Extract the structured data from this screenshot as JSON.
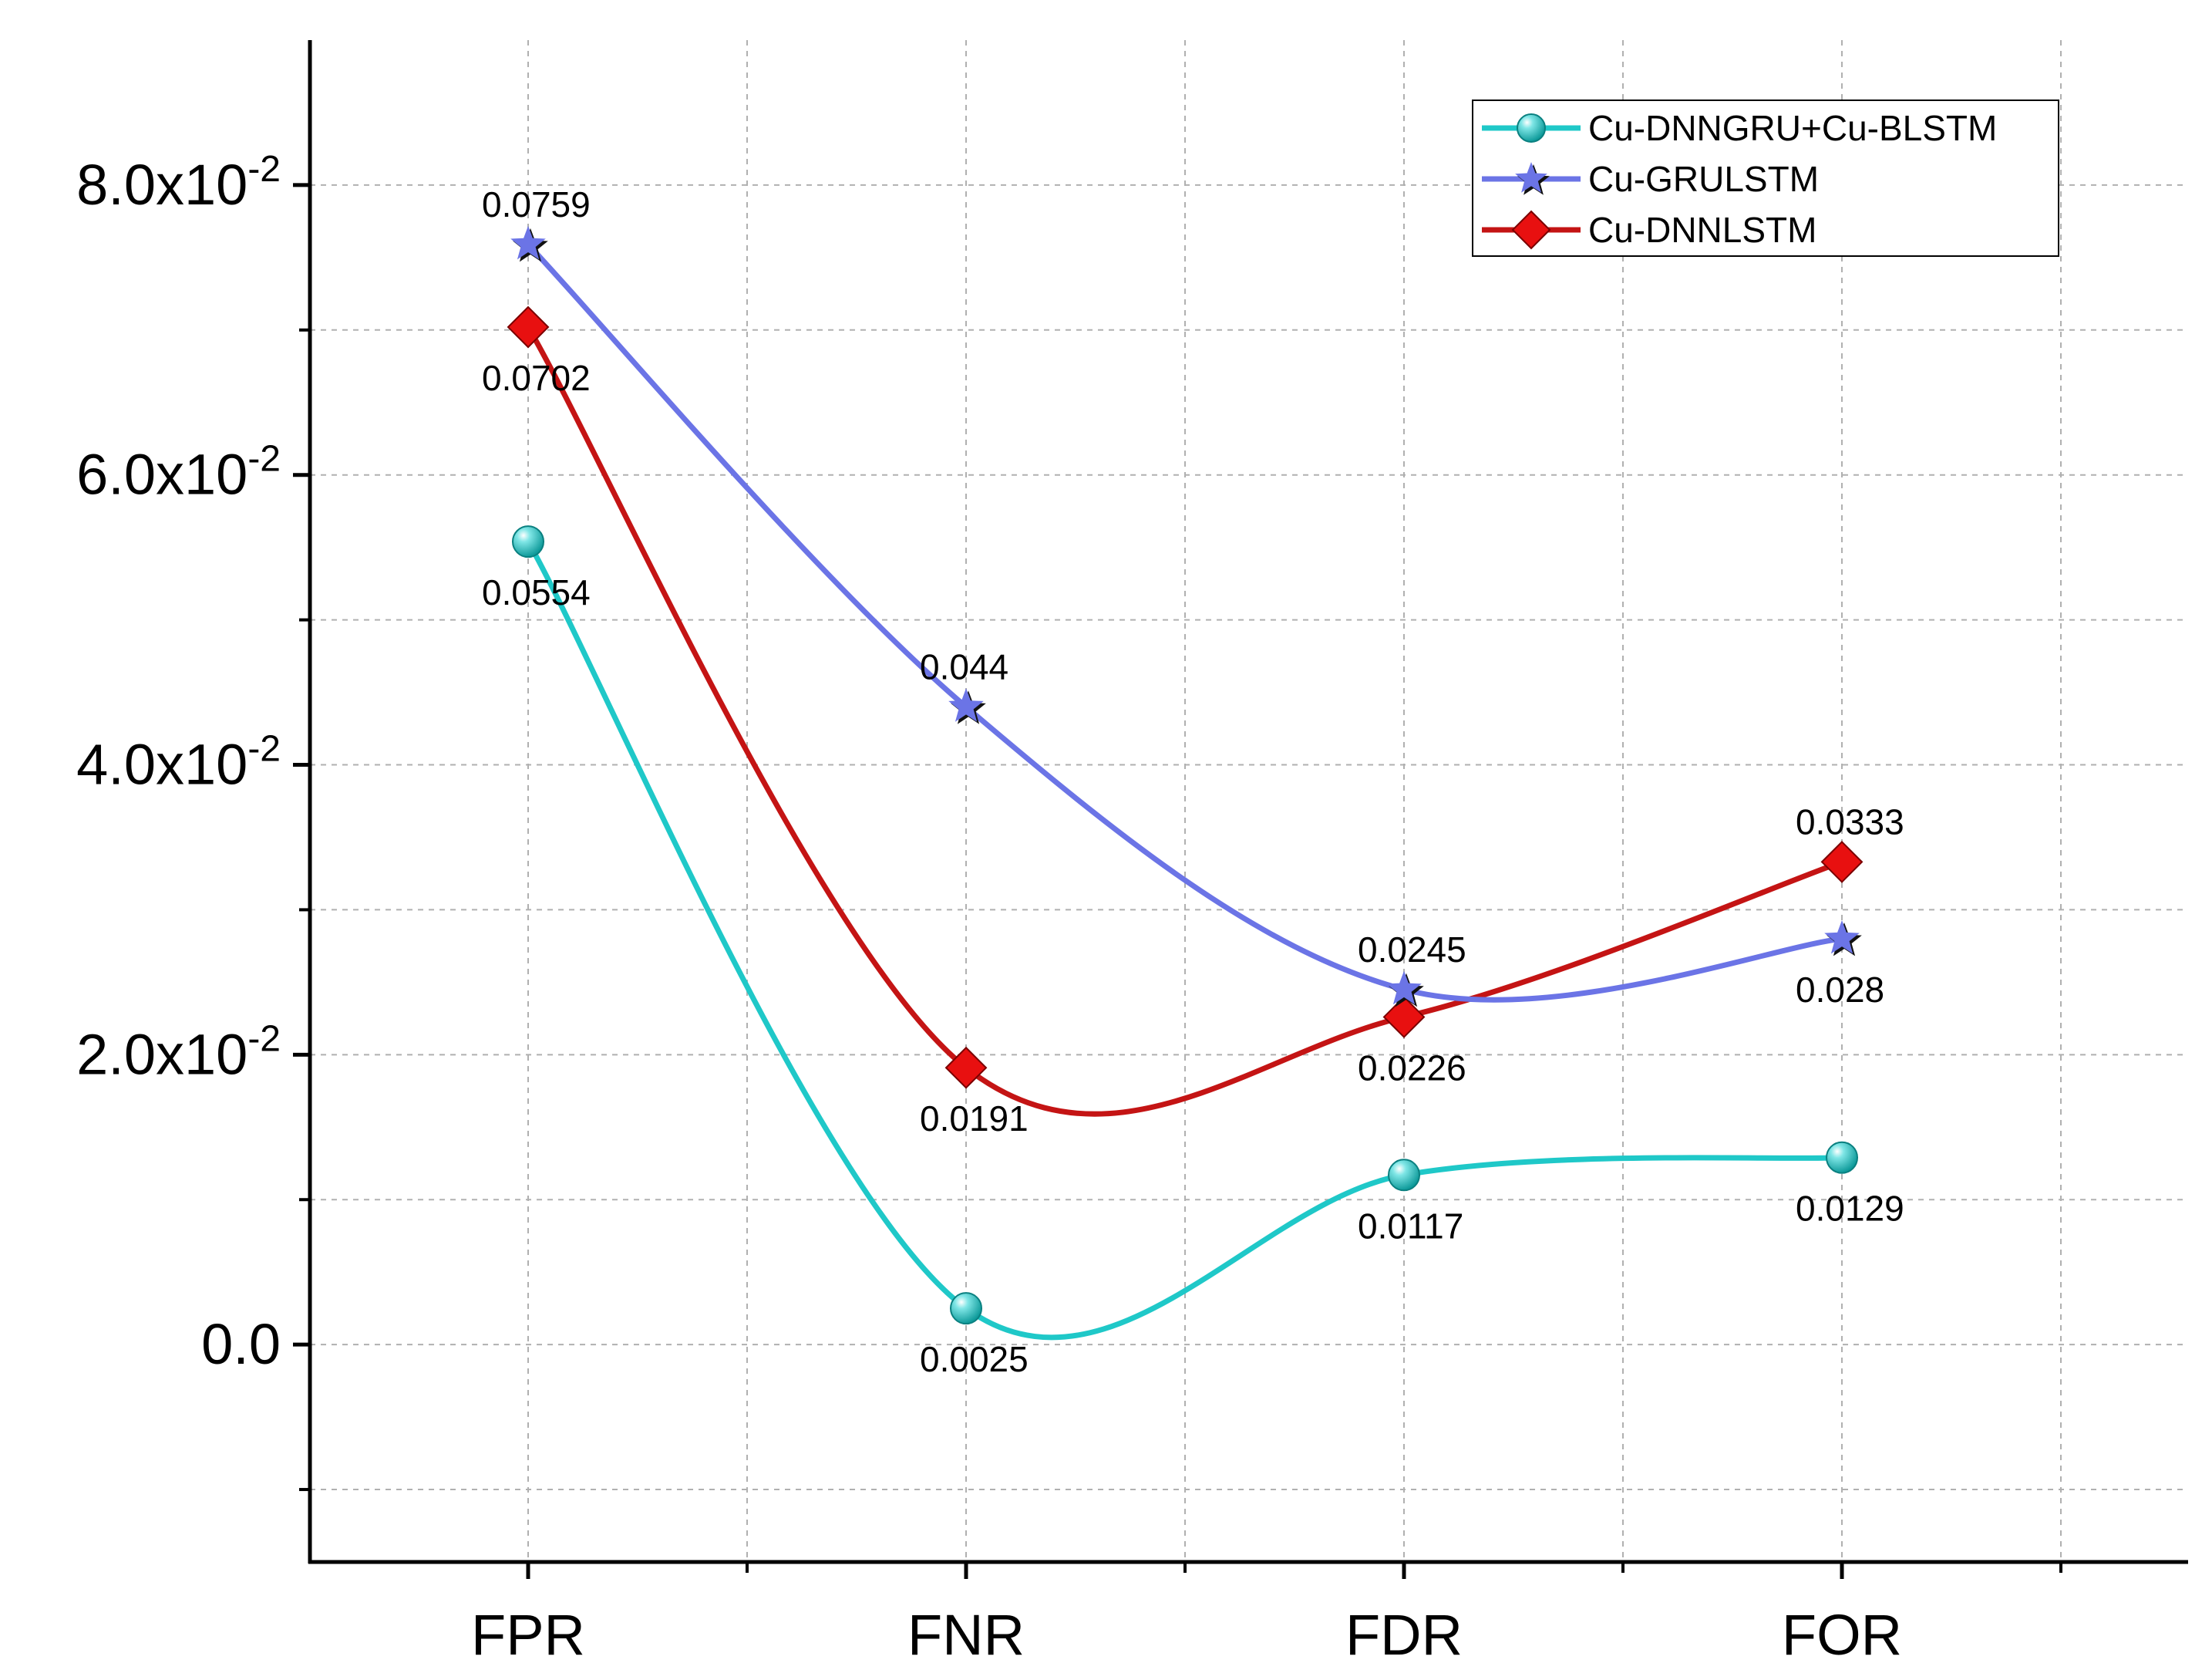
{
  "chart_data": {
    "type": "line",
    "categories": [
      "FPR",
      "FNR",
      "FDR",
      "FOR"
    ],
    "ylim": [
      -0.015,
      0.09
    ],
    "y_major_ticks": [
      0,
      0.02,
      0.04,
      0.06,
      0.08
    ],
    "y_minor_ticks": [
      -0.01,
      0.01,
      0.03,
      0.05,
      0.07
    ],
    "y_tick_labels": [
      {
        "value": 0,
        "text": "0.0"
      },
      {
        "value": 0.02,
        "mantissa": "2.0x10",
        "exponent": "-2"
      },
      {
        "value": 0.04,
        "mantissa": "4.0x10",
        "exponent": "-2"
      },
      {
        "value": 0.06,
        "mantissa": "6.0x10",
        "exponent": "-2"
      },
      {
        "value": 0.08,
        "mantissa": "8.0x10",
        "exponent": "-2"
      }
    ],
    "grid": true,
    "legend_position": "top-right",
    "series": [
      {
        "name": "Cu-DNNGRU+Cu-BLSTM",
        "color": "#1fc8c8",
        "marker": "sphere",
        "values": [
          0.0554,
          0.0025,
          0.0117,
          0.0129
        ],
        "labels": [
          "0.0554",
          "0.0025",
          "0.0117",
          "0.0129"
        ],
        "label_positions": [
          "below",
          "below",
          "below",
          "below"
        ]
      },
      {
        "name": "Cu-GRULSTM",
        "color": "#6b74e6",
        "marker": "star",
        "values": [
          0.0759,
          0.044,
          0.0245,
          0.028
        ],
        "labels": [
          "0.0759",
          "0.044",
          "0.0245",
          "0.028"
        ],
        "label_positions": [
          "above",
          "above",
          "above",
          "below"
        ]
      },
      {
        "name": "Cu-DNNLSTM",
        "color": "#c41414",
        "marker": "diamond",
        "values": [
          0.0702,
          0.0191,
          0.0226,
          0.0333
        ],
        "labels": [
          "0.0702",
          "0.0191",
          "0.0226",
          "0.0333"
        ],
        "label_positions": [
          "below",
          "below",
          "below",
          "above"
        ]
      }
    ]
  }
}
